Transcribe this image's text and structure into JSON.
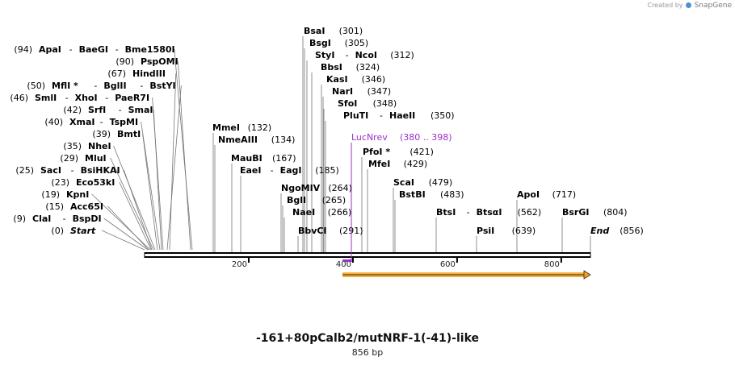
{
  "credit": {
    "text": "Created by",
    "brand": "SnapGene"
  },
  "sequence": {
    "name": "-161+80pCalb2/mutNRF-1(-41)-like",
    "length_label": "856 bp"
  },
  "ruler_ticks": [
    {
      "value": 200,
      "label": "200"
    },
    {
      "value": 400,
      "label": "400"
    },
    {
      "value": 600,
      "label": "600"
    },
    {
      "value": 800,
      "label": "800"
    }
  ],
  "primer": {
    "name": "LucNrev",
    "range": "(380 .. 398)",
    "color": "#9b30c8"
  },
  "feature": {
    "type": "arrow",
    "color": "#f4a21e",
    "start": 380,
    "end": 856
  },
  "sites": [
    {
      "pos": "(0)",
      "names": [
        {
          "t": "Start",
          "i": true
        }
      ]
    },
    {
      "pos": "(9)",
      "names": [
        {
          "t": "ClaI"
        },
        {
          "t": "BspDI"
        }
      ]
    },
    {
      "pos": "(15)",
      "names": [
        {
          "t": "Acc65I"
        }
      ]
    },
    {
      "pos": "(19)",
      "names": [
        {
          "t": "KpnI"
        }
      ]
    },
    {
      "pos": "(23)",
      "names": [
        {
          "t": "Eco53kI"
        }
      ]
    },
    {
      "pos": "(25)",
      "names": [
        {
          "t": "SacI"
        },
        {
          "t": "BsiHKAI"
        }
      ]
    },
    {
      "pos": "(29)",
      "names": [
        {
          "t": "MluI"
        }
      ]
    },
    {
      "pos": "(35)",
      "names": [
        {
          "t": "NheI"
        }
      ]
    },
    {
      "pos": "(39)",
      "names": [
        {
          "t": "BmtI"
        }
      ]
    },
    {
      "pos": "(40)",
      "names": [
        {
          "t": "XmaI"
        },
        {
          "t": "TspMI"
        }
      ]
    },
    {
      "pos": "(42)",
      "names": [
        {
          "t": "SrfI"
        },
        {
          "t": "SmaI"
        }
      ]
    },
    {
      "pos": "(46)",
      "names": [
        {
          "t": "SmlI"
        },
        {
          "t": "XhoI"
        },
        {
          "t": "PaeR7I"
        }
      ]
    },
    {
      "pos": "(50)",
      "names": [
        {
          "t": "MflI *"
        },
        {
          "t": "BglII"
        },
        {
          "t": "BstYI"
        }
      ]
    },
    {
      "pos": "(67)",
      "names": [
        {
          "t": "HindIII"
        }
      ]
    },
    {
      "pos": "(90)",
      "names": [
        {
          "t": "PspOMI"
        }
      ]
    },
    {
      "pos": "(94)",
      "names": [
        {
          "t": "ApaI"
        },
        {
          "t": "BaeGI"
        },
        {
          "t": "Bme1580I"
        }
      ]
    },
    {
      "pos": "(132)",
      "names": [
        {
          "t": "MmeI"
        }
      ]
    },
    {
      "pos": "(134)",
      "names": [
        {
          "t": "NmeAIII"
        }
      ]
    },
    {
      "pos": "(167)",
      "names": [
        {
          "t": "MauBI"
        }
      ]
    },
    {
      "pos": "(185)",
      "names": [
        {
          "t": "EaeI"
        },
        {
          "t": "EagI"
        }
      ]
    },
    {
      "pos": "(264)",
      "names": [
        {
          "t": "NgoMIV"
        }
      ]
    },
    {
      "pos": "(265)",
      "names": [
        {
          "t": "BglI"
        }
      ]
    },
    {
      "pos": "(266)",
      "names": [
        {
          "t": "NaeI"
        }
      ]
    },
    {
      "pos": "(291)",
      "names": [
        {
          "t": "BbvCI"
        }
      ]
    },
    {
      "pos": "(301)",
      "names": [
        {
          "t": "BsaI"
        }
      ]
    },
    {
      "pos": "(305)",
      "names": [
        {
          "t": "BsgI"
        }
      ]
    },
    {
      "pos": "(312)",
      "names": [
        {
          "t": "StyI"
        },
        {
          "t": "NcoI"
        }
      ]
    },
    {
      "pos": "(324)",
      "names": [
        {
          "t": "BbsI"
        }
      ]
    },
    {
      "pos": "(346)",
      "names": [
        {
          "t": "KasI"
        }
      ]
    },
    {
      "pos": "(347)",
      "names": [
        {
          "t": "NarI"
        }
      ]
    },
    {
      "pos": "(348)",
      "names": [
        {
          "t": "SfoI"
        }
      ]
    },
    {
      "pos": "(350)",
      "names": [
        {
          "t": "PluTI"
        },
        {
          "t": "HaeII"
        }
      ]
    },
    {
      "pos": "(421)",
      "names": [
        {
          "t": "PfoI *"
        }
      ]
    },
    {
      "pos": "(429)",
      "names": [
        {
          "t": "MfeI"
        }
      ]
    },
    {
      "pos": "(479)",
      "names": [
        {
          "t": "ScaI"
        }
      ]
    },
    {
      "pos": "(483)",
      "names": [
        {
          "t": "BstBI"
        }
      ]
    },
    {
      "pos": "(562)",
      "names": [
        {
          "t": "BtsI"
        },
        {
          "t": "BtsαI"
        }
      ]
    },
    {
      "pos": "(639)",
      "names": [
        {
          "t": "PsiI"
        }
      ]
    },
    {
      "pos": "(717)",
      "names": [
        {
          "t": "ApoI"
        }
      ]
    },
    {
      "pos": "(804)",
      "names": [
        {
          "t": "BsrGI"
        }
      ]
    },
    {
      "pos": "(856)",
      "names": [
        {
          "t": "End",
          "i": true
        }
      ]
    }
  ]
}
